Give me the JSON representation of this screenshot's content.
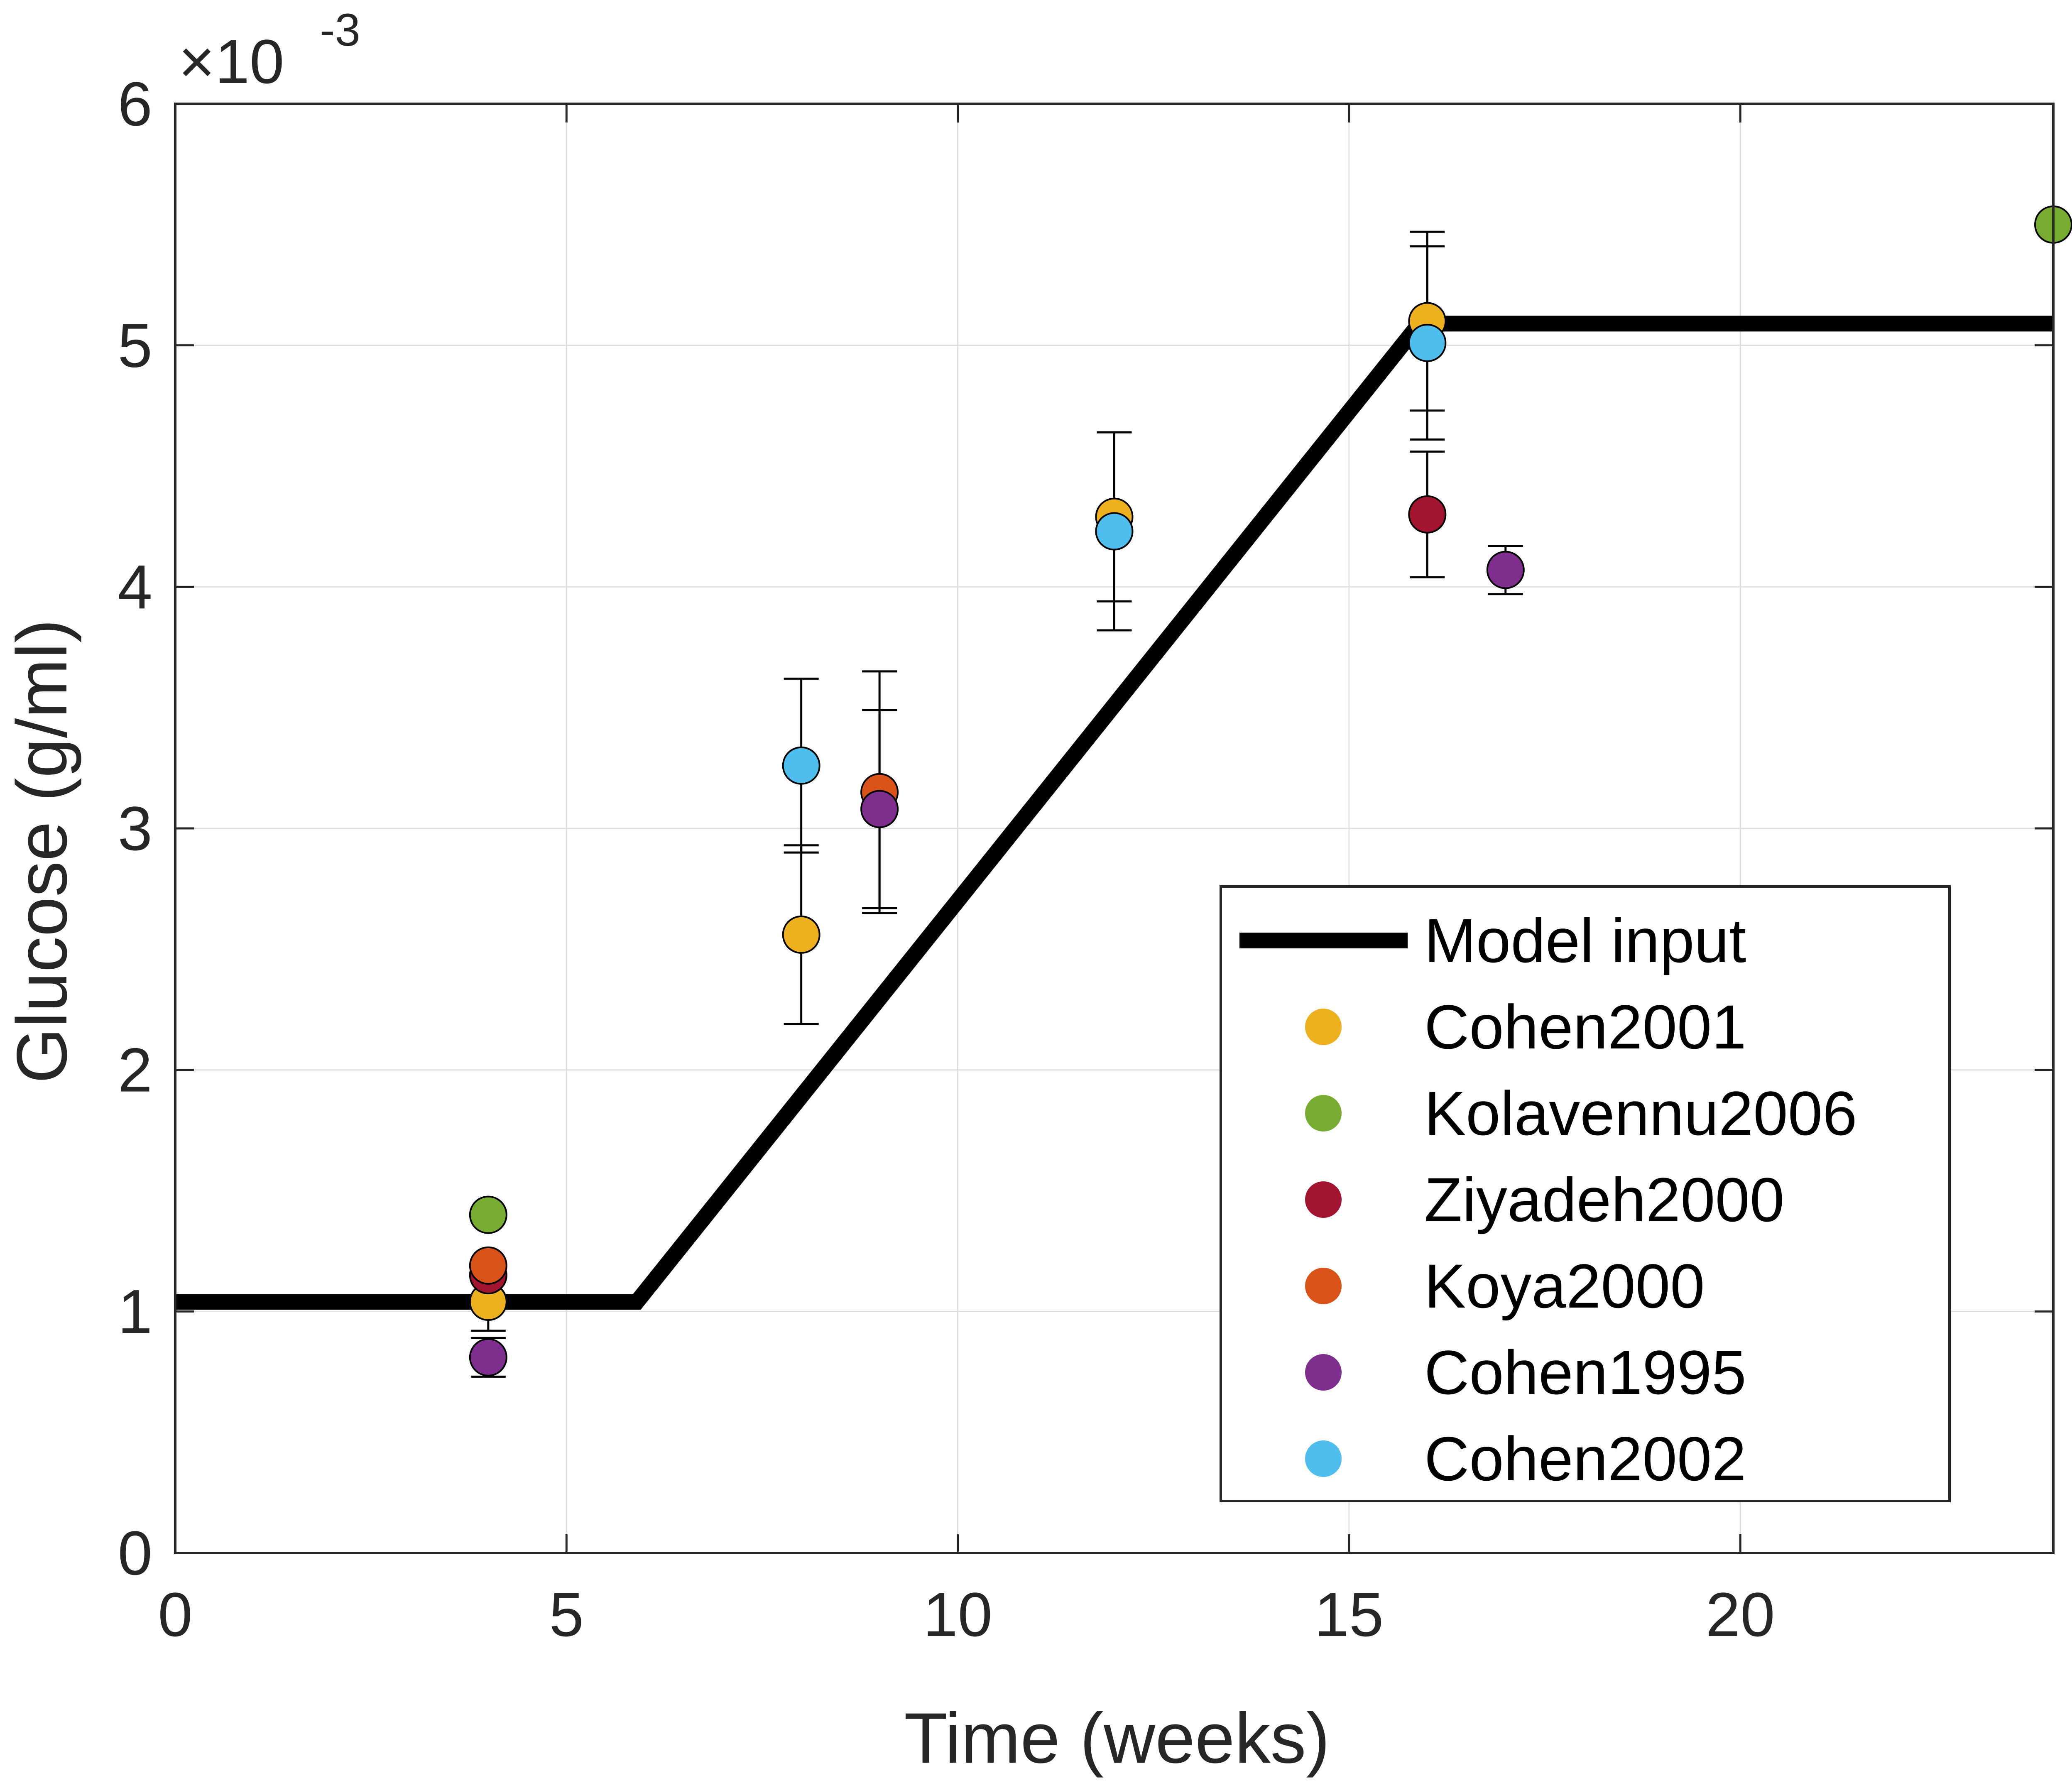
{
  "chart_data": {
    "type": "scatter",
    "title": "",
    "xlabel": "Time (weeks)",
    "ylabel": "Glucose (g/ml)",
    "y_multiplier_label": {
      "base": "×10",
      "exponent": "-3"
    },
    "xlim": [
      0,
      24
    ],
    "ylim": [
      0,
      6
    ],
    "x_ticks": [
      0,
      5,
      10,
      15,
      20
    ],
    "x_tick_labels": [
      "0",
      "5",
      "10",
      "15",
      "20"
    ],
    "y_ticks": [
      0,
      1,
      2,
      3,
      4,
      5,
      6
    ],
    "y_tick_labels": [
      "0",
      "1",
      "2",
      "3",
      "4",
      "5",
      "6"
    ],
    "grid": true,
    "legend_position": "bottom-right",
    "line_series": [
      {
        "name": "Model input",
        "color": "#000000",
        "x": [
          0,
          5.9,
          15.9,
          24
        ],
        "y": [
          1.04,
          1.04,
          5.09,
          5.09
        ]
      }
    ],
    "series": [
      {
        "name": "Cohen2001",
        "color": "#EDB120",
        "points": [
          {
            "x": 4,
            "y": 1.04,
            "err": 0.12
          },
          {
            "x": 8,
            "y": 2.56,
            "err": 0.37
          },
          {
            "x": 12,
            "y": 4.29,
            "err": 0.35
          },
          {
            "x": 16,
            "y": 5.1,
            "err": 0.37
          }
        ]
      },
      {
        "name": "Kolavennu2006",
        "color": "#77AC30",
        "points": [
          {
            "x": 4,
            "y": 1.4,
            "err": null
          },
          {
            "x": 24,
            "y": 5.5,
            "err": null
          }
        ]
      },
      {
        "name": "Ziyadeh2000",
        "color": "#A2142F",
        "points": [
          {
            "x": 4,
            "y": 1.15,
            "err": null
          },
          {
            "x": 16,
            "y": 4.3,
            "err": 0.26
          }
        ]
      },
      {
        "name": "Koya2000",
        "color": "#D95319",
        "points": [
          {
            "x": 4,
            "y": 1.19,
            "err": null
          },
          {
            "x": 9,
            "y": 3.15,
            "err": 0.5
          }
        ]
      },
      {
        "name": "Cohen1995",
        "color": "#7E2F8E",
        "points": [
          {
            "x": 4,
            "y": 0.81,
            "err": 0.08
          },
          {
            "x": 9,
            "y": 3.08,
            "err": 0.41
          },
          {
            "x": 17,
            "y": 4.07,
            "err": 0.1
          }
        ]
      },
      {
        "name": "Cohen2002",
        "color": "#4DBEEE",
        "points": [
          {
            "x": 8,
            "y": 3.26,
            "err": 0.36
          },
          {
            "x": 12,
            "y": 4.23,
            "err": 0.41
          },
          {
            "x": 16,
            "y": 5.01,
            "err": 0.4
          }
        ]
      }
    ]
  }
}
